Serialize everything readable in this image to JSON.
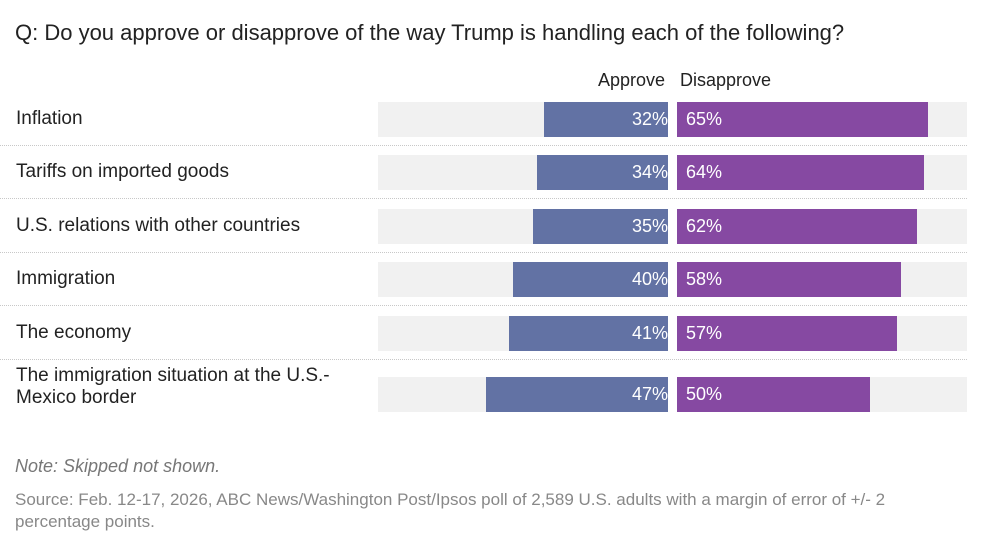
{
  "chart_data": {
    "type": "bar",
    "orientation": "horizontal-diverging",
    "title": "Q: Do you approve or disapprove of the way Trump is handling each of the following?",
    "categories": [
      "Inflation",
      "Tariffs on imported goods",
      "U.S. relations with other countries",
      "Immigration",
      "The economy",
      "The immigration situation at the U.S.-Mexico border"
    ],
    "series": [
      {
        "name": "Approve",
        "color": "#6272a4",
        "values": [
          32,
          34,
          35,
          40,
          41,
          47
        ]
      },
      {
        "name": "Disapprove",
        "color": "#8649a2",
        "values": [
          65,
          64,
          62,
          58,
          57,
          50
        ]
      }
    ],
    "value_labels_approve": [
      "32%",
      "34%",
      "35%",
      "40%",
      "41%",
      "47%"
    ],
    "value_labels_disapprove": [
      "65%",
      "64%",
      "62%",
      "58%",
      "57%",
      "50%"
    ],
    "xlim": [
      0,
      75
    ],
    "note": "Note: Skipped not shown.",
    "source": "Source: Feb. 12-17, 2026, ABC News/Washington Post/Ipsos poll of 2,589 U.S. adults with a margin of error of +/- 2 percentage points."
  }
}
